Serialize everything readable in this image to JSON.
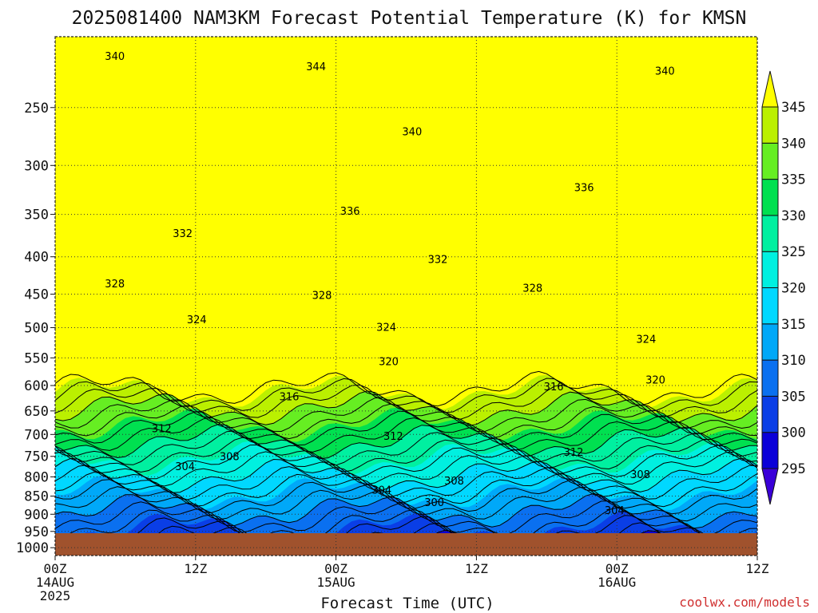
{
  "chart_data": {
    "type": "contour",
    "title": "2025081400 NAM3KM Forecast Potential Temperature (K) for KMSN",
    "xlabel": "Forecast Time (UTC)",
    "ylabel": "",
    "x_range_hours": [
      0,
      60
    ],
    "y_range_hpa": [
      200,
      1025
    ],
    "y_scale": "log-pressure",
    "x_ticks": [
      {
        "hour": 0,
        "line1": "00Z",
        "line2": "14AUG",
        "line3": "2025"
      },
      {
        "hour": 12,
        "line1": "12Z",
        "line2": "",
        "line3": ""
      },
      {
        "hour": 24,
        "line1": "00Z",
        "line2": "15AUG",
        "line3": ""
      },
      {
        "hour": 36,
        "line1": "12Z",
        "line2": "",
        "line3": ""
      },
      {
        "hour": 48,
        "line1": "00Z",
        "line2": "16AUG",
        "line3": ""
      },
      {
        "hour": 60,
        "line1": "12Z",
        "line2": "",
        "line3": ""
      }
    ],
    "y_ticks": [
      250,
      300,
      350,
      400,
      450,
      500,
      550,
      600,
      650,
      700,
      750,
      800,
      850,
      900,
      950,
      1000
    ],
    "colorbar_levels": [
      295,
      300,
      305,
      310,
      315,
      320,
      325,
      330,
      335,
      340,
      345
    ],
    "colorbar_colors": [
      "#0a00d8",
      "#0a3ee6",
      "#0a70f0",
      "#00a8f8",
      "#00d8ff",
      "#00f0e0",
      "#00f0a0",
      "#00e050",
      "#66ee22",
      "#bbf000",
      "#ffff00"
    ],
    "ground_color": "#a0522d",
    "grid": "dotted",
    "contour_labels": [
      {
        "value": "340",
        "hour": 5.1,
        "p": 213
      },
      {
        "value": "344",
        "hour": 22.3,
        "p": 220
      },
      {
        "value": "340",
        "hour": 30.5,
        "p": 270
      },
      {
        "value": "340",
        "hour": 52.1,
        "p": 223
      },
      {
        "value": "336",
        "hour": 45.2,
        "p": 322
      },
      {
        "value": "336",
        "hour": 25.2,
        "p": 347
      },
      {
        "value": "332",
        "hour": 10.9,
        "p": 372
      },
      {
        "value": "332",
        "hour": 32.7,
        "p": 404
      },
      {
        "value": "328",
        "hour": 5.1,
        "p": 436
      },
      {
        "value": "328",
        "hour": 22.8,
        "p": 452
      },
      {
        "value": "328",
        "hour": 40.8,
        "p": 442
      },
      {
        "value": "324",
        "hour": 12.1,
        "p": 488
      },
      {
        "value": "324",
        "hour": 28.3,
        "p": 500
      },
      {
        "value": "324",
        "hour": 50.5,
        "p": 519
      },
      {
        "value": "320",
        "hour": 28.5,
        "p": 557
      },
      {
        "value": "320",
        "hour": 51.3,
        "p": 590
      },
      {
        "value": "316",
        "hour": 20.0,
        "p": 622
      },
      {
        "value": "316",
        "hour": 42.6,
        "p": 603
      },
      {
        "value": "312",
        "hour": 9.1,
        "p": 688
      },
      {
        "value": "312",
        "hour": 28.9,
        "p": 705
      },
      {
        "value": "312",
        "hour": 44.3,
        "p": 741
      },
      {
        "value": "308",
        "hour": 14.9,
        "p": 751
      },
      {
        "value": "308",
        "hour": 34.1,
        "p": 811
      },
      {
        "value": "308",
        "hour": 50.0,
        "p": 795
      },
      {
        "value": "304",
        "hour": 11.1,
        "p": 775
      },
      {
        "value": "304",
        "hour": 27.9,
        "p": 835
      },
      {
        "value": "304",
        "hour": 47.8,
        "p": 890
      },
      {
        "value": "300",
        "hour": 32.4,
        "p": 868
      }
    ]
  },
  "credit": "coolwx.com/models"
}
